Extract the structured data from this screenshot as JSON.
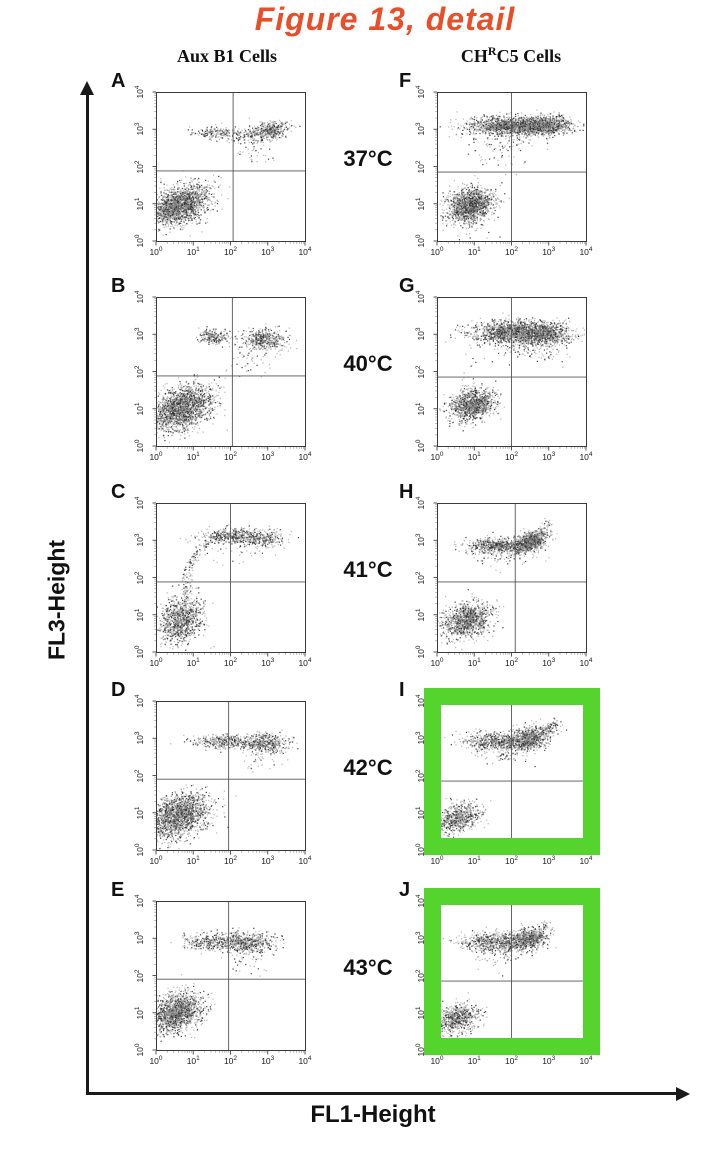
{
  "title": {
    "text": "Figure 13, detail"
  },
  "colors": {
    "title": "#e84e28",
    "highlight_green": "#55d42e",
    "dot_mid": "rgba(140,140,140,0.6)",
    "dot_dark": "rgba(45,45,45,0.85)",
    "frame": "#3a3a3a",
    "gate": "#555555"
  },
  "columns": [
    {
      "pre": "Aux B1 Cells",
      "sup": "",
      "post": ""
    },
    {
      "pre": "CH",
      "sup": "R",
      "post": "C5 Cells"
    }
  ],
  "axes": {
    "x_label": "FL1-Height",
    "y_label": "FL3-Height"
  },
  "chart_data": {
    "type": "scatter",
    "plot_kind": "flow cytometry two-parameter dot plots, 5x2 grid",
    "x_axis": {
      "label": "FL1-Height",
      "scale": "log",
      "range_exp": [
        0,
        4
      ],
      "tick_labels": [
        "10^0",
        "10^1",
        "10^2",
        "10^3",
        "10^4"
      ]
    },
    "y_axis": {
      "label": "FL3-Height",
      "scale": "log",
      "range_exp": [
        0,
        4
      ],
      "tick_labels": [
        "10^0",
        "10^1",
        "10^2",
        "10^3",
        "10^4"
      ]
    },
    "temperature_rows": [
      "37°C",
      "40°C",
      "41°C",
      "42°C",
      "43°C"
    ],
    "panels": [
      {
        "letter": "A",
        "column": "Aux B1 Cells",
        "row": 0,
        "temperature": "37°C",
        "highlighted": false,
        "quadrant_gate_log10": {
          "x": 2.07,
          "y": 1.88
        },
        "populations": [
          {
            "type": "gauss",
            "label": "main population lower-left",
            "cx": 0.62,
            "cy": 0.95,
            "sx": 0.4,
            "sy": 0.27,
            "rho": 0.35,
            "n": 1900
          },
          {
            "type": "gauss",
            "label": "upper band left",
            "cx": 1.55,
            "cy": 2.9,
            "sx": 0.28,
            "sy": 0.08,
            "rho": 0,
            "n": 160
          },
          {
            "type": "gauss",
            "label": "upper band middle sparse",
            "cx": 2.2,
            "cy": 2.85,
            "sx": 0.3,
            "sy": 0.1,
            "rho": 0,
            "n": 80
          },
          {
            "type": "gauss",
            "label": "upper band right dense",
            "cx": 3.0,
            "cy": 2.95,
            "sx": 0.28,
            "sy": 0.13,
            "rho": 0.3,
            "n": 420
          },
          {
            "type": "gauss",
            "label": "scatter below band",
            "cx": 2.7,
            "cy": 2.45,
            "sx": 0.3,
            "sy": 0.22,
            "rho": 0,
            "n": 45
          }
        ]
      },
      {
        "letter": "B",
        "column": "Aux B1 Cells",
        "row": 1,
        "temperature": "40°C",
        "highlighted": false,
        "quadrant_gate_log10": {
          "x": 2.05,
          "y": 1.88
        },
        "populations": [
          {
            "type": "gauss",
            "label": "main population lower-left",
            "cx": 0.68,
            "cy": 1.0,
            "sx": 0.42,
            "sy": 0.3,
            "rho": 0.35,
            "n": 2000
          },
          {
            "type": "gauss",
            "label": "upper band left",
            "cx": 1.55,
            "cy": 2.92,
            "sx": 0.2,
            "sy": 0.1,
            "rho": 0,
            "n": 230
          },
          {
            "type": "gauss",
            "label": "upper band right dense",
            "cx": 2.9,
            "cy": 2.85,
            "sx": 0.3,
            "sy": 0.14,
            "rho": 0,
            "n": 480
          },
          {
            "type": "gauss",
            "label": "scatter below band",
            "cx": 2.55,
            "cy": 2.35,
            "sx": 0.25,
            "sy": 0.25,
            "rho": 0,
            "n": 40
          }
        ]
      },
      {
        "letter": "C",
        "column": "Aux B1 Cells",
        "row": 2,
        "temperature": "41°C",
        "highlighted": false,
        "quadrant_gate_log10": {
          "x": 2.0,
          "y": 1.88
        },
        "populations": [
          {
            "type": "gauss",
            "label": "main population lower-left",
            "cx": 0.68,
            "cy": 0.85,
            "sx": 0.28,
            "sy": 0.32,
            "rho": 0.2,
            "n": 1000
          },
          {
            "type": "arc",
            "label": "transition tail",
            "x0": 0.8,
            "y0": 1.5,
            "x1": 1.5,
            "y1": 2.98,
            "cpx": 0.72,
            "cpy": 2.5,
            "jitter": 0.07,
            "n": 130
          },
          {
            "type": "gauss",
            "label": "upper band",
            "cx": 2.0,
            "cy": 3.1,
            "sx": 0.4,
            "sy": 0.11,
            "rho": 0,
            "n": 420
          },
          {
            "type": "gauss",
            "label": "upper band right",
            "cx": 2.85,
            "cy": 3.05,
            "sx": 0.3,
            "sy": 0.12,
            "rho": 0,
            "n": 260
          },
          {
            "type": "gauss",
            "label": "scatter below band",
            "cx": 2.4,
            "cy": 2.65,
            "sx": 0.45,
            "sy": 0.18,
            "rho": 0,
            "n": 25
          }
        ]
      },
      {
        "letter": "D",
        "column": "Aux B1 Cells",
        "row": 3,
        "temperature": "42°C",
        "highlighted": false,
        "quadrant_gate_log10": {
          "x": 1.95,
          "y": 1.9
        },
        "populations": [
          {
            "type": "gauss",
            "label": "main population lower-left",
            "cx": 0.58,
            "cy": 0.92,
            "sx": 0.4,
            "sy": 0.3,
            "rho": 0.3,
            "n": 1800
          },
          {
            "type": "gauss",
            "label": "upper band",
            "cx": 1.9,
            "cy": 2.9,
            "sx": 0.45,
            "sy": 0.09,
            "rho": 0,
            "n": 400
          },
          {
            "type": "gauss",
            "label": "upper band right dense",
            "cx": 2.95,
            "cy": 2.85,
            "sx": 0.3,
            "sy": 0.13,
            "rho": 0,
            "n": 420
          },
          {
            "type": "gauss",
            "label": "scatter below band",
            "cx": 2.8,
            "cy": 2.4,
            "sx": 0.25,
            "sy": 0.2,
            "rho": 0,
            "n": 30
          }
        ]
      },
      {
        "letter": "E",
        "column": "Aux B1 Cells",
        "row": 4,
        "temperature": "43°C",
        "highlighted": false,
        "quadrant_gate_log10": {
          "x": 1.95,
          "y": 1.9
        },
        "populations": [
          {
            "type": "gauss",
            "label": "main population lower-left",
            "cx": 0.55,
            "cy": 1.0,
            "sx": 0.36,
            "sy": 0.27,
            "rho": 0.3,
            "n": 1500
          },
          {
            "type": "gauss",
            "label": "upper band left",
            "cx": 1.5,
            "cy": 2.9,
            "sx": 0.4,
            "sy": 0.12,
            "rho": 0,
            "n": 320
          },
          {
            "type": "gauss",
            "label": "upper band right dense",
            "cx": 2.45,
            "cy": 2.88,
            "sx": 0.35,
            "sy": 0.14,
            "rho": 0,
            "n": 550
          },
          {
            "type": "gauss",
            "label": "scatter below band",
            "cx": 2.5,
            "cy": 2.35,
            "sx": 0.25,
            "sy": 0.18,
            "rho": 0,
            "n": 30
          }
        ]
      },
      {
        "letter": "F",
        "column": "CHRC5 Cells",
        "row": 0,
        "temperature": "37°C",
        "highlighted": false,
        "quadrant_gate_log10": {
          "x": 2.0,
          "y": 1.85
        },
        "populations": [
          {
            "type": "gauss",
            "label": "main population lower-left",
            "cx": 0.9,
            "cy": 0.95,
            "sx": 0.3,
            "sy": 0.22,
            "rho": 0.2,
            "n": 1500
          },
          {
            "type": "gauss",
            "label": "outliers below main",
            "cx": 1.0,
            "cy": 0.45,
            "sx": 0.25,
            "sy": 0.25,
            "rho": 0,
            "n": 30
          },
          {
            "type": "gauss",
            "label": "dense upper band",
            "cx": 2.1,
            "cy": 3.1,
            "sx": 0.65,
            "sy": 0.12,
            "rho": 0,
            "n": 1500
          },
          {
            "type": "gauss",
            "label": "upper band right",
            "cx": 3.0,
            "cy": 3.1,
            "sx": 0.3,
            "sy": 0.13,
            "rho": 0,
            "n": 500
          },
          {
            "type": "gauss",
            "label": "band fuzz",
            "cx": 2.0,
            "cy": 2.95,
            "sx": 0.6,
            "sy": 0.2,
            "rho": 0,
            "n": 200
          },
          {
            "type": "gauss",
            "label": "stragglers below band",
            "cx": 1.7,
            "cy": 2.4,
            "sx": 0.4,
            "sy": 0.3,
            "rho": 0,
            "n": 60
          }
        ]
      },
      {
        "letter": "G",
        "column": "CHRC5 Cells",
        "row": 1,
        "temperature": "40°C",
        "highlighted": false,
        "quadrant_gate_log10": {
          "x": 2.0,
          "y": 1.85
        },
        "populations": [
          {
            "type": "gauss",
            "label": "main population lower-left",
            "cx": 0.95,
            "cy": 1.1,
            "sx": 0.3,
            "sy": 0.2,
            "rho": 0.2,
            "n": 1200
          },
          {
            "type": "gauss",
            "label": "dense thick upper band",
            "cx": 2.2,
            "cy": 3.05,
            "sx": 0.6,
            "sy": 0.15,
            "rho": 0,
            "n": 1700
          },
          {
            "type": "gauss",
            "label": "upper band right",
            "cx": 3.0,
            "cy": 3.0,
            "sx": 0.3,
            "sy": 0.15,
            "rho": 0,
            "n": 400
          },
          {
            "type": "gauss",
            "label": "fuzz below band",
            "cx": 2.4,
            "cy": 2.7,
            "sx": 0.5,
            "sy": 0.2,
            "rho": 0,
            "n": 200
          },
          {
            "type": "gauss",
            "label": "stray left",
            "cx": 0.85,
            "cy": 2.2,
            "sx": 0.15,
            "sy": 0.3,
            "rho": 0,
            "n": 12
          }
        ]
      },
      {
        "letter": "H",
        "column": "CHRC5 Cells",
        "row": 2,
        "temperature": "41°C",
        "highlighted": false,
        "quadrant_gate_log10": {
          "x": 2.1,
          "y": 1.88
        },
        "populations": [
          {
            "type": "gauss",
            "label": "main population lower-left",
            "cx": 0.8,
            "cy": 0.85,
            "sx": 0.33,
            "sy": 0.24,
            "rho": 0.25,
            "n": 1100
          },
          {
            "type": "gauss",
            "label": "upper band left",
            "cx": 1.6,
            "cy": 2.85,
            "sx": 0.4,
            "sy": 0.1,
            "rho": 0,
            "n": 600
          },
          {
            "type": "gauss",
            "label": "upper band dense blob",
            "cx": 2.5,
            "cy": 2.95,
            "sx": 0.22,
            "sy": 0.14,
            "rho": 0.4,
            "n": 800
          },
          {
            "type": "arc",
            "label": "tail to upper right",
            "x0": 2.7,
            "y0": 3.1,
            "x1": 3.0,
            "y1": 3.5,
            "cpx": 2.9,
            "cpy": 3.25,
            "jitter": 0.06,
            "n": 50
          },
          {
            "type": "gauss",
            "label": "fuzz below band",
            "cx": 1.8,
            "cy": 2.55,
            "sx": 0.4,
            "sy": 0.15,
            "rho": 0,
            "n": 60
          }
        ]
      },
      {
        "letter": "I",
        "column": "CHRC5 Cells",
        "row": 3,
        "temperature": "42°C",
        "highlighted": true,
        "quadrant_gate_log10": {
          "x": 2.0,
          "y": 1.85
        },
        "populations": [
          {
            "type": "gauss",
            "label": "small population lower-left",
            "cx": 0.55,
            "cy": 0.85,
            "sx": 0.3,
            "sy": 0.2,
            "rho": 0.3,
            "n": 650
          },
          {
            "type": "gauss",
            "label": "upper band left",
            "cx": 1.55,
            "cy": 2.9,
            "sx": 0.45,
            "sy": 0.13,
            "rho": 0,
            "n": 550
          },
          {
            "type": "gauss",
            "label": "upper band dense right",
            "cx": 2.5,
            "cy": 3.0,
            "sx": 0.3,
            "sy": 0.16,
            "rho": 0.4,
            "n": 850
          },
          {
            "type": "arc",
            "label": "tail to upper right",
            "x0": 2.8,
            "y0": 3.15,
            "x1": 3.25,
            "y1": 3.5,
            "cpx": 3.0,
            "cpy": 3.25,
            "jitter": 0.06,
            "n": 60
          },
          {
            "type": "gauss",
            "label": "fuzz below band",
            "cx": 1.7,
            "cy": 2.55,
            "sx": 0.4,
            "sy": 0.15,
            "rho": 0,
            "n": 60
          }
        ]
      },
      {
        "letter": "J",
        "column": "CHRC5 Cells",
        "row": 4,
        "temperature": "43°C",
        "highlighted": true,
        "quadrant_gate_log10": {
          "x": 2.0,
          "y": 1.85
        },
        "populations": [
          {
            "type": "gauss",
            "label": "small population lower-left",
            "cx": 0.55,
            "cy": 0.85,
            "sx": 0.3,
            "sy": 0.2,
            "rho": 0.3,
            "n": 650
          },
          {
            "type": "gauss",
            "label": "upper band left",
            "cx": 1.45,
            "cy": 2.9,
            "sx": 0.4,
            "sy": 0.13,
            "rho": 0,
            "n": 550
          },
          {
            "type": "gauss",
            "label": "upper band dense right",
            "cx": 2.4,
            "cy": 2.95,
            "sx": 0.28,
            "sy": 0.15,
            "rho": 0.35,
            "n": 800
          },
          {
            "type": "arc",
            "label": "tail to upper right",
            "x0": 2.65,
            "y0": 3.1,
            "x1": 3.0,
            "y1": 3.4,
            "cpx": 2.85,
            "cpy": 3.2,
            "jitter": 0.06,
            "n": 50
          },
          {
            "type": "gauss",
            "label": "fuzz below band",
            "cx": 1.6,
            "cy": 2.5,
            "sx": 0.35,
            "sy": 0.15,
            "rho": 0,
            "n": 50
          }
        ]
      }
    ]
  }
}
